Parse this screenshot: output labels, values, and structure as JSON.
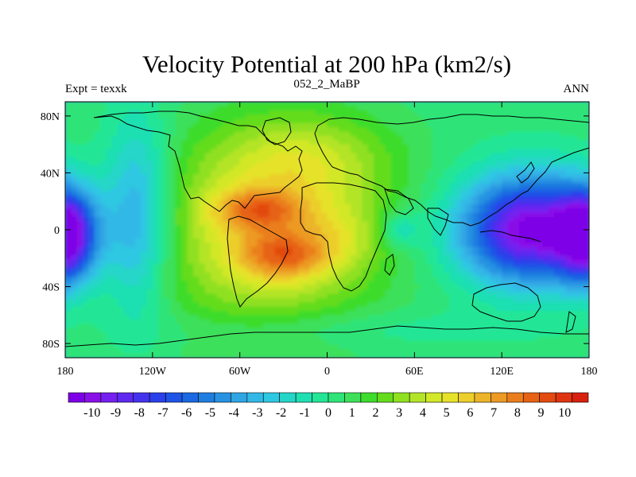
{
  "chart_data": {
    "type": "heatmap",
    "title": "Velocity Potential at 200 hPa (km2/s)",
    "left_string": "Expt = texxk",
    "center_string": "052_2_MaBP",
    "right_string": "ANN",
    "x_ticks": [
      {
        "value": -180,
        "label": "180"
      },
      {
        "value": -120,
        "label": "120W"
      },
      {
        "value": -60,
        "label": "60W"
      },
      {
        "value": 0,
        "label": "0"
      },
      {
        "value": 60,
        "label": "60E"
      },
      {
        "value": 120,
        "label": "120E"
      },
      {
        "value": 180,
        "label": "180"
      }
    ],
    "y_ticks": [
      {
        "value": 80,
        "label": "80N"
      },
      {
        "value": 40,
        "label": "40N"
      },
      {
        "value": 0,
        "label": "0"
      },
      {
        "value": -40,
        "label": "40S"
      },
      {
        "value": -80,
        "label": "80S"
      }
    ],
    "xlim": [
      -180,
      180
    ],
    "ylim": [
      -90,
      90
    ],
    "colorbar_range": [
      -10.5,
      10.5
    ],
    "colorbar_labels": [
      "-10",
      "-9",
      "-8",
      "-7",
      "-6",
      "-5",
      "-4",
      "-3",
      "-2",
      "-1",
      "0",
      "1",
      "2",
      "3",
      "4",
      "5",
      "6",
      "7",
      "8",
      "9",
      "10"
    ],
    "colors": [
      "#7d00e6",
      "#8a10e8",
      "#7520f0",
      "#5e28f0",
      "#4433ee",
      "#2b40ea",
      "#1e55e6",
      "#1a68e2",
      "#1e7ee0",
      "#2792e2",
      "#30a5e4",
      "#32b8e6",
      "#2ec8e2",
      "#25d6c8",
      "#1edfb2",
      "#22e696",
      "#2ee478",
      "#3ee05a",
      "#3edc2c",
      "#64dc1c",
      "#90e020",
      "#b4e428",
      "#d2e828",
      "#e6e22a",
      "#ecce2c",
      "#ecb42a",
      "#ec9a24",
      "#ea7e1c",
      "#e66214",
      "#e24a10",
      "#de3410",
      "#d8200e"
    ],
    "field_features": [
      {
        "name": "max-south-atlantic",
        "lon": -30,
        "lat": -18,
        "value": 8.3
      },
      {
        "name": "max-caribbean",
        "lon": -48,
        "lat": 14,
        "value": 8.0
      },
      {
        "name": "min-west-pacific",
        "lon": 140,
        "lat": 0,
        "value": -9.5
      },
      {
        "name": "min-dateline",
        "lon": -180,
        "lat": -5,
        "value": -8.0
      }
    ]
  }
}
